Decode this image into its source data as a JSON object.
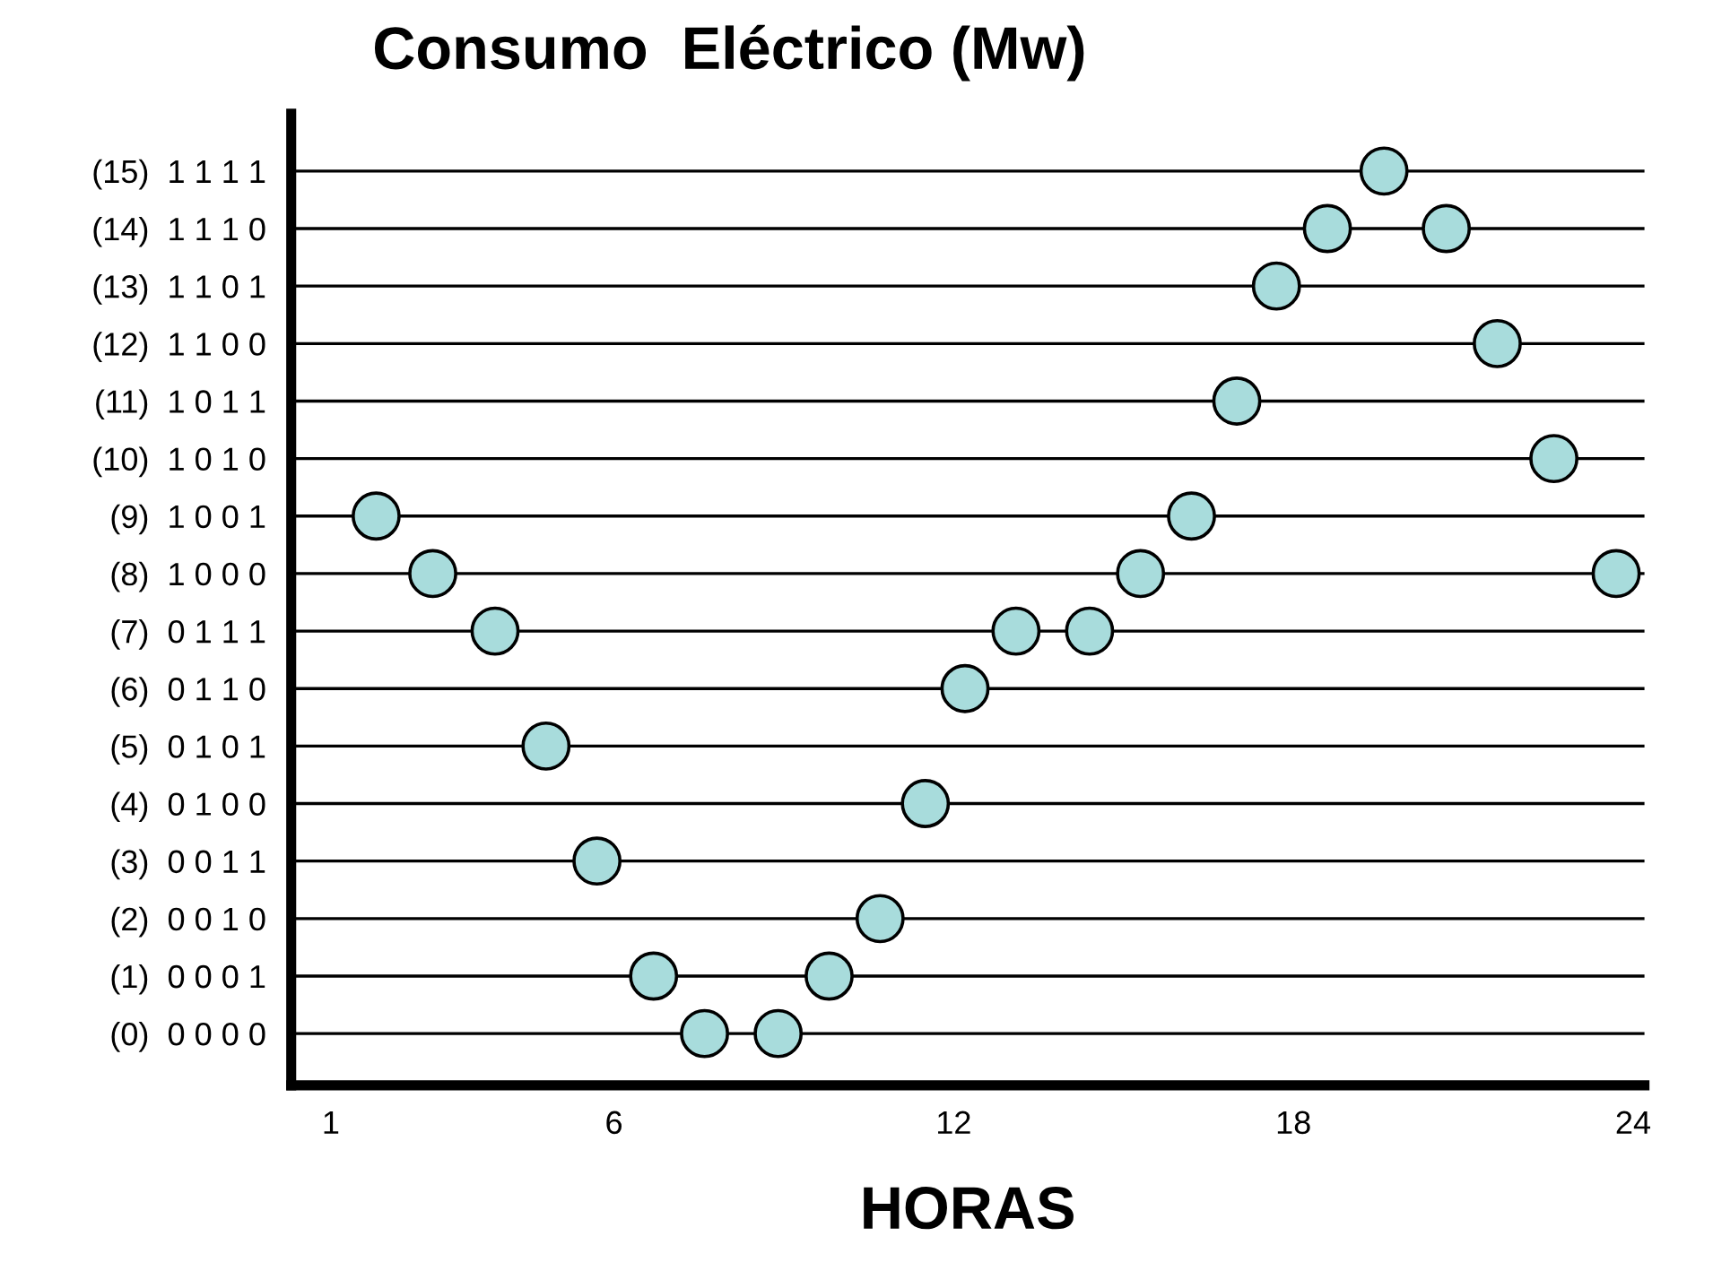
{
  "chart_data": {
    "type": "scatter",
    "orientation": "horizontal",
    "title": "Consumo  Eléctrico (Mw)",
    "xlabel": "HORAS",
    "categories": [
      "(15)  1 1 1 1",
      "(14)  1 1 1 0",
      "(13)  1 1 0 1",
      "(12)  1 1 0 0",
      "(11)  1 0 1 1",
      "(10)  1 0 1 0",
      "(9)  1 0 0 1",
      "(8)  1 0 0 0",
      "(7)  0 1 1 1",
      "(6)  0 1 1 0",
      "(5)  0 1 0 1",
      "(4)  0 1 0 0",
      "(3)  0 0 1 1",
      "(2)  0 0 1 0",
      "(1)  0 0 0 1",
      "(0)  0 0 0 0"
    ],
    "series": [
      {
        "color": "#a8dcdc",
        "values": [
          19.6,
          18.6,
          17.7,
          21.6,
          17.0,
          22.6,
          1.8,
          2.8,
          3.9,
          12.2,
          4.8,
          11.5,
          5.7,
          10.7,
          6.7,
          7.6
        ]
      },
      {
        "color": "#a8dcdc",
        "values": [
          null,
          20.7,
          null,
          null,
          null,
          null,
          16.2,
          15.3,
          13.1,
          null,
          null,
          null,
          null,
          null,
          9.8,
          8.9
        ]
      },
      {
        "color": "#a8dcdc",
        "values": [
          null,
          null,
          null,
          null,
          null,
          null,
          null,
          23.7,
          14.4,
          null,
          null,
          null,
          null,
          null,
          null,
          null
        ]
      }
    ],
    "xlim": [
      0.3,
      24.2
    ],
    "xticks": [
      1,
      6,
      12,
      18,
      24
    ],
    "grid": "y",
    "marker": "circle"
  }
}
